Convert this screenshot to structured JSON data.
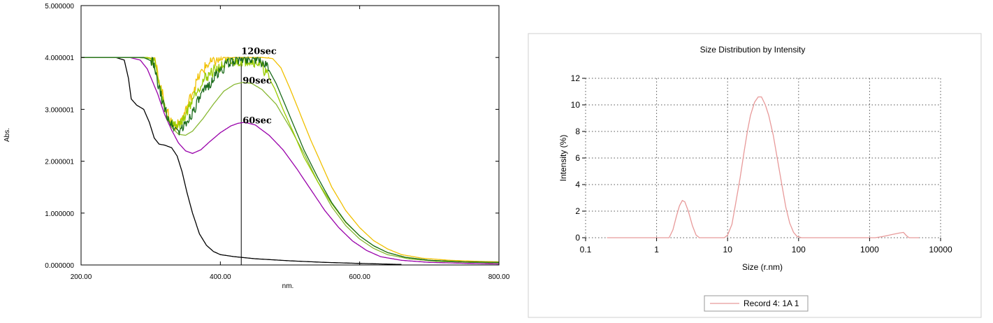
{
  "chart_data": [
    {
      "type": "line",
      "title": "",
      "xlabel": "nm.",
      "ylabel": "Abs.",
      "xlim": [
        200,
        800
      ],
      "ylim": [
        0,
        5
      ],
      "x_tick_labels": [
        "200.00",
        "400.00",
        "600.00",
        "800.00"
      ],
      "x_ticks": [
        200,
        400,
        600,
        800
      ],
      "y_tick_labels": [
        "0.000000",
        "1.000000",
        "2.000001",
        "3.000001",
        "4.000001",
        "5.000000"
      ],
      "y_ticks": [
        0,
        1,
        2,
        3,
        4,
        5
      ],
      "marker_line_x": 430,
      "annotations": [
        {
          "text": "120sec",
          "x": 440,
          "y": 4.12
        },
        {
          "text": "90sec",
          "x": 442,
          "y": 3.55
        },
        {
          "text": "60sec",
          "x": 442,
          "y": 2.78
        }
      ],
      "series": [
        {
          "color": "#000000",
          "noisy": false,
          "points": [
            [
              200,
              4.0
            ],
            [
              250,
              4.0
            ],
            [
              262,
              3.95
            ],
            [
              268,
              3.6
            ],
            [
              272,
              3.2
            ],
            [
              280,
              3.08
            ],
            [
              290,
              3.0
            ],
            [
              298,
              2.75
            ],
            [
              305,
              2.45
            ],
            [
              312,
              2.33
            ],
            [
              320,
              2.31
            ],
            [
              330,
              2.26
            ],
            [
              338,
              2.1
            ],
            [
              345,
              1.8
            ],
            [
              352,
              1.4
            ],
            [
              360,
              1.0
            ],
            [
              370,
              0.6
            ],
            [
              380,
              0.38
            ],
            [
              390,
              0.26
            ],
            [
              400,
              0.2
            ],
            [
              420,
              0.16
            ],
            [
              450,
              0.12
            ],
            [
              500,
              0.08
            ],
            [
              550,
              0.05
            ],
            [
              600,
              0.03
            ],
            [
              660,
              0.01
            ]
          ]
        },
        {
          "color": "#9900aa",
          "noisy": false,
          "points": [
            [
              200,
              4.0
            ],
            [
              270,
              4.0
            ],
            [
              285,
              3.95
            ],
            [
              295,
              3.78
            ],
            [
              310,
              3.3
            ],
            [
              320,
              2.9
            ],
            [
              330,
              2.6
            ],
            [
              340,
              2.35
            ],
            [
              350,
              2.2
            ],
            [
              360,
              2.15
            ],
            [
              372,
              2.22
            ],
            [
              385,
              2.38
            ],
            [
              400,
              2.55
            ],
            [
              415,
              2.68
            ],
            [
              425,
              2.73
            ],
            [
              435,
              2.75
            ],
            [
              450,
              2.7
            ],
            [
              470,
              2.5
            ],
            [
              490,
              2.22
            ],
            [
              510,
              1.85
            ],
            [
              530,
              1.45
            ],
            [
              550,
              1.05
            ],
            [
              570,
              0.72
            ],
            [
              590,
              0.46
            ],
            [
              610,
              0.28
            ],
            [
              630,
              0.16
            ],
            [
              660,
              0.09
            ],
            [
              700,
              0.05
            ],
            [
              760,
              0.03
            ],
            [
              800,
              0.02
            ]
          ]
        },
        {
          "color": "#88b833",
          "noisy": false,
          "points": [
            [
              200,
              4.0
            ],
            [
              280,
              4.0
            ],
            [
              300,
              3.98
            ],
            [
              310,
              3.6
            ],
            [
              320,
              3.0
            ],
            [
              330,
              2.65
            ],
            [
              340,
              2.52
            ],
            [
              350,
              2.5
            ],
            [
              360,
              2.58
            ],
            [
              375,
              2.82
            ],
            [
              390,
              3.1
            ],
            [
              405,
              3.35
            ],
            [
              420,
              3.48
            ],
            [
              432,
              3.52
            ],
            [
              445,
              3.5
            ],
            [
              460,
              3.38
            ],
            [
              480,
              3.1
            ],
            [
              500,
              2.65
            ],
            [
              520,
              2.15
            ],
            [
              540,
              1.6
            ],
            [
              560,
              1.12
            ],
            [
              580,
              0.76
            ],
            [
              600,
              0.5
            ],
            [
              620,
              0.32
            ],
            [
              640,
              0.2
            ],
            [
              670,
              0.12
            ],
            [
              710,
              0.07
            ],
            [
              760,
              0.05
            ],
            [
              800,
              0.04
            ]
          ]
        },
        {
          "color": "#f0c000",
          "noisy": true,
          "points": [
            [
              200,
              4.0
            ],
            [
              295,
              4.0
            ],
            [
              305,
              3.98
            ],
            [
              315,
              3.4
            ],
            [
              323,
              2.95
            ],
            [
              332,
              2.7
            ],
            [
              340,
              2.7
            ],
            [
              350,
              2.95
            ],
            [
              360,
              3.35
            ],
            [
              370,
              3.65
            ],
            [
              380,
              3.85
            ],
            [
              392,
              3.93
            ],
            [
              405,
              3.98
            ],
            [
              420,
              4.0
            ],
            [
              440,
              4.0
            ],
            [
              460,
              4.0
            ],
            [
              475,
              3.98
            ],
            [
              487,
              3.8
            ],
            [
              500,
              3.4
            ],
            [
              515,
              2.9
            ],
            [
              530,
              2.4
            ],
            [
              545,
              1.95
            ],
            [
              560,
              1.5
            ],
            [
              580,
              1.05
            ],
            [
              600,
              0.72
            ],
            [
              620,
              0.47
            ],
            [
              640,
              0.31
            ],
            [
              660,
              0.2
            ],
            [
              690,
              0.13
            ],
            [
              730,
              0.09
            ],
            [
              770,
              0.07
            ],
            [
              800,
              0.06
            ]
          ]
        },
        {
          "color": "#99cc00",
          "noisy": true,
          "points": [
            [
              200,
              4.0
            ],
            [
              295,
              4.0
            ],
            [
              305,
              3.95
            ],
            [
              315,
              3.3
            ],
            [
              325,
              2.82
            ],
            [
              335,
              2.68
            ],
            [
              345,
              2.75
            ],
            [
              355,
              3.05
            ],
            [
              365,
              3.35
            ],
            [
              378,
              3.6
            ],
            [
              390,
              3.75
            ],
            [
              405,
              3.85
            ],
            [
              420,
              3.92
            ],
            [
              440,
              3.95
            ],
            [
              455,
              3.9
            ],
            [
              465,
              3.72
            ],
            [
              478,
              3.4
            ],
            [
              490,
              3.0
            ],
            [
              505,
              2.55
            ],
            [
              520,
              2.08
            ],
            [
              540,
              1.6
            ],
            [
              560,
              1.18
            ],
            [
              580,
              0.82
            ],
            [
              600,
              0.56
            ],
            [
              620,
              0.37
            ],
            [
              640,
              0.24
            ],
            [
              665,
              0.15
            ],
            [
              700,
              0.09
            ],
            [
              750,
              0.06
            ],
            [
              800,
              0.05
            ]
          ]
        },
        {
          "color": "#1a6b1a",
          "noisy": true,
          "points": [
            [
              200,
              4.0
            ],
            [
              290,
              4.0
            ],
            [
              303,
              3.92
            ],
            [
              310,
              3.5
            ],
            [
              320,
              3.0
            ],
            [
              330,
              2.7
            ],
            [
              340,
              2.58
            ],
            [
              350,
              2.7
            ],
            [
              360,
              2.95
            ],
            [
              370,
              3.2
            ],
            [
              382,
              3.45
            ],
            [
              395,
              3.68
            ],
            [
              408,
              3.85
            ],
            [
              420,
              3.95
            ],
            [
              435,
              3.98
            ],
            [
              450,
              3.98
            ],
            [
              462,
              3.9
            ],
            [
              470,
              3.75
            ],
            [
              480,
              3.5
            ],
            [
              492,
              3.12
            ],
            [
              505,
              2.7
            ],
            [
              520,
              2.22
            ],
            [
              540,
              1.68
            ],
            [
              560,
              1.2
            ],
            [
              580,
              0.83
            ],
            [
              600,
              0.56
            ],
            [
              620,
              0.37
            ],
            [
              640,
              0.24
            ],
            [
              665,
              0.15
            ],
            [
              700,
              0.09
            ],
            [
              750,
              0.06
            ],
            [
              800,
              0.05
            ]
          ]
        }
      ]
    },
    {
      "type": "line",
      "title": "Size Distribution by Intensity",
      "xlabel": "Size (r.nm)",
      "ylabel": "Intensity (%)",
      "x_scale": "log",
      "xlim": [
        0.1,
        10000
      ],
      "ylim": [
        0,
        12
      ],
      "x_tick_labels": [
        "0.1",
        "1",
        "10",
        "100",
        "1000",
        "10000"
      ],
      "x_ticks": [
        0.1,
        1,
        10,
        100,
        1000,
        10000
      ],
      "y_tick_labels": [
        "0",
        "2",
        "4",
        "6",
        "8",
        "10",
        "12"
      ],
      "y_ticks": [
        0,
        2,
        4,
        6,
        8,
        10,
        12
      ],
      "grid": true,
      "legend_position": "bottom-center",
      "series": [
        {
          "name": "Record 4: 1A 1",
          "color": "#e89a9a",
          "points": [
            [
              0.2,
              0
            ],
            [
              0.5,
              0
            ],
            [
              1.0,
              0
            ],
            [
              1.5,
              0
            ],
            [
              1.7,
              0.6
            ],
            [
              1.9,
              1.6
            ],
            [
              2.1,
              2.4
            ],
            [
              2.3,
              2.8
            ],
            [
              2.5,
              2.7
            ],
            [
              2.8,
              2.0
            ],
            [
              3.2,
              0.9
            ],
            [
              3.6,
              0.2
            ],
            [
              4.0,
              0
            ],
            [
              6.0,
              0
            ],
            [
              9.0,
              0
            ],
            [
              10.0,
              0.2
            ],
            [
              11.5,
              1.0
            ],
            [
              13.0,
              2.6
            ],
            [
              15.0,
              4.5
            ],
            [
              17.0,
              6.4
            ],
            [
              19.0,
              8.0
            ],
            [
              21.0,
              9.2
            ],
            [
              24.0,
              10.2
            ],
            [
              27.0,
              10.6
            ],
            [
              30.0,
              10.6
            ],
            [
              34.0,
              10.0
            ],
            [
              38.0,
              9.2
            ],
            [
              44.0,
              7.7
            ],
            [
              50.0,
              6.0
            ],
            [
              58.0,
              4.0
            ],
            [
              66.0,
              2.3
            ],
            [
              75.0,
              1.1
            ],
            [
              85.0,
              0.4
            ],
            [
              95.0,
              0.1
            ],
            [
              110.0,
              0
            ],
            [
              300.0,
              0
            ],
            [
              800.0,
              0
            ],
            [
              1200.0,
              0
            ],
            [
              1500.0,
              0.08
            ],
            [
              2000.0,
              0.22
            ],
            [
              2600.0,
              0.35
            ],
            [
              3000.0,
              0.4
            ],
            [
              3300.0,
              0.15
            ],
            [
              3600.0,
              0
            ],
            [
              5000.0,
              0
            ]
          ]
        }
      ]
    }
  ]
}
